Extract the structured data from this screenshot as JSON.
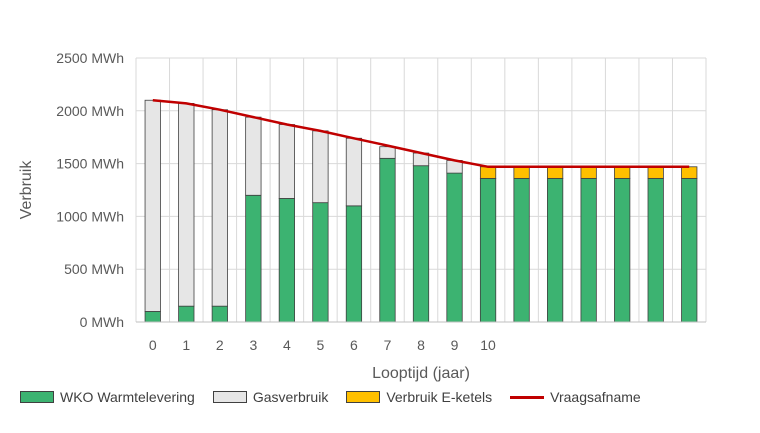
{
  "chart_data": {
    "type": "bar",
    "stacked": true,
    "title": "",
    "xlabel": "Looptijd (jaar)",
    "ylabel": "Verbruik",
    "ylim": [
      0,
      2500
    ],
    "yticks": [
      0,
      500,
      1000,
      1500,
      2000,
      2500
    ],
    "ytick_labels": [
      "0 MWh",
      "500 MWh",
      "1000 MWh",
      "1500 MWh",
      "2000 MWh",
      "2500 MWh"
    ],
    "grid": true,
    "legend_position": "bottom",
    "categories": [
      "0",
      "1",
      "2",
      "3",
      "4",
      "5",
      "6",
      "7",
      "8",
      "9",
      "10",
      "",
      "",
      "",
      "",
      "",
      ""
    ],
    "series": [
      {
        "name": "WKO Warmtelevering",
        "type": "bar",
        "color": "#3CB371",
        "values": [
          100,
          150,
          150,
          1200,
          1170,
          1130,
          1100,
          1550,
          1480,
          1410,
          1360,
          1360,
          1360,
          1360,
          1360,
          1360,
          1360
        ]
      },
      {
        "name": "Gasverbruik",
        "type": "bar",
        "color": "#E6E6E6",
        "values": [
          2000,
          1920,
          1860,
          740,
          700,
          680,
          640,
          110,
          120,
          120,
          0,
          0,
          0,
          0,
          0,
          0,
          0
        ]
      },
      {
        "name": "Verbruik E-ketels",
        "type": "bar",
        "color": "#FFC000",
        "values": [
          0,
          0,
          0,
          0,
          0,
          0,
          0,
          0,
          0,
          0,
          110,
          110,
          110,
          110,
          110,
          110,
          110
        ]
      },
      {
        "name": "Vraagsafname",
        "type": "line",
        "color": "#C00000",
        "values": [
          2100,
          2070,
          2010,
          1940,
          1870,
          1810,
          1740,
          1670,
          1600,
          1530,
          1470,
          1470,
          1470,
          1470,
          1470,
          1470,
          1470
        ]
      }
    ]
  }
}
